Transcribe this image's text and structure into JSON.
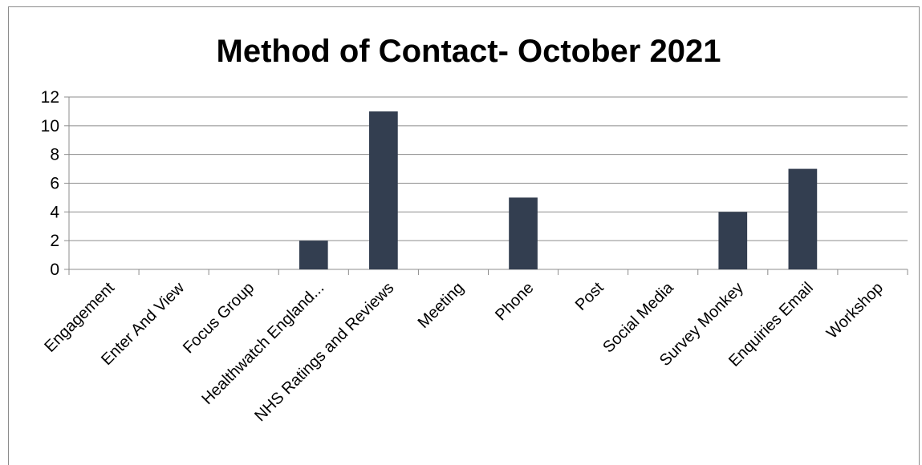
{
  "chart_data": {
    "type": "bar",
    "title": "Method of Contact- October 2021",
    "categories": [
      "Engagement",
      "Enter And View",
      "Focus Group",
      "Healthwatch England...",
      "NHS Ratings and Reviews",
      "Meeting",
      "Phone",
      "Post",
      "Social Media",
      "Survey Monkey",
      "Enquiries Email",
      "Workshop"
    ],
    "values": [
      0,
      0,
      0,
      2,
      11,
      0,
      5,
      0,
      0,
      4,
      7,
      0
    ],
    "xlabel": "",
    "ylabel": "",
    "ylim": [
      0,
      12
    ],
    "yticks": [
      0,
      2,
      4,
      6,
      8,
      10,
      12
    ],
    "grid": true,
    "legend": "none",
    "bar_color": "#333e50",
    "grid_color": "#8c8c8c"
  }
}
